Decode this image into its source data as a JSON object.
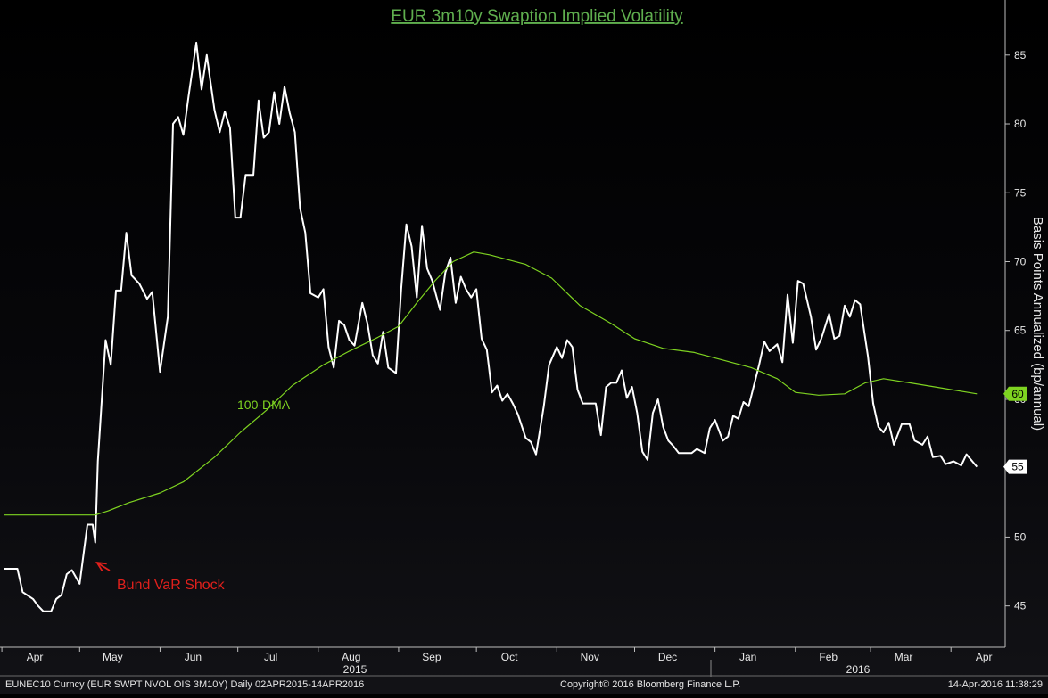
{
  "chart_data": {
    "type": "line",
    "title": "EUR 3m10y Swaption Implied Volatility",
    "ylabel": "Basis Points Annualized (bp/annual)",
    "xlabel": "",
    "ylim": [
      42,
      89
    ],
    "yticks": [
      45,
      50,
      55,
      60,
      65,
      70,
      75,
      80,
      85
    ],
    "x_ticks": [
      "Apr",
      "May",
      "Jun",
      "Jul",
      "Aug",
      "Sep",
      "Oct",
      "Nov",
      "Dec",
      "Jan",
      "Feb",
      "Mar",
      "Apr"
    ],
    "x_years": [
      "2015",
      "2016"
    ],
    "x_range": [
      "2015-04-02",
      "2016-04-14"
    ],
    "grid": false,
    "series": [
      {
        "name": "",
        "color": "#ffffff",
        "last_value_label": "55",
        "points": [
          [
            "2015-04-02",
            47.7
          ],
          [
            "2015-04-07",
            47.7
          ],
          [
            "2015-04-09",
            46.0
          ],
          [
            "2015-04-13",
            45.5
          ],
          [
            "2015-04-15",
            45.0
          ],
          [
            "2015-04-17",
            44.6
          ],
          [
            "2015-04-20",
            44.6
          ],
          [
            "2015-04-22",
            45.5
          ],
          [
            "2015-04-24",
            45.8
          ],
          [
            "2015-04-26",
            47.3
          ],
          [
            "2015-04-28",
            47.6
          ],
          [
            "2015-05-01",
            46.6
          ],
          [
            "2015-05-04",
            50.9
          ],
          [
            "2015-05-06",
            50.9
          ],
          [
            "2015-05-07",
            49.6
          ],
          [
            "2015-05-08",
            55.5
          ],
          [
            "2015-05-11",
            64.3
          ],
          [
            "2015-05-13",
            62.5
          ],
          [
            "2015-05-15",
            67.9
          ],
          [
            "2015-05-17",
            67.9
          ],
          [
            "2015-05-19",
            72.1
          ],
          [
            "2015-05-21",
            69.0
          ],
          [
            "2015-05-24",
            68.4
          ],
          [
            "2015-05-27",
            67.3
          ],
          [
            "2015-05-29",
            67.8
          ],
          [
            "2015-06-01",
            62.0
          ],
          [
            "2015-06-04",
            66.0
          ],
          [
            "2015-06-06",
            80.0
          ],
          [
            "2015-06-08",
            80.5
          ],
          [
            "2015-06-10",
            79.2
          ],
          [
            "2015-06-12",
            82.0
          ],
          [
            "2015-06-15",
            85.9
          ],
          [
            "2015-06-17",
            82.5
          ],
          [
            "2015-06-19",
            85.0
          ],
          [
            "2015-06-22",
            81.0
          ],
          [
            "2015-06-24",
            79.4
          ],
          [
            "2015-06-26",
            80.9
          ],
          [
            "2015-06-28",
            79.7
          ],
          [
            "2015-06-30",
            73.2
          ],
          [
            "2015-07-02",
            73.2
          ],
          [
            "2015-07-04",
            76.3
          ],
          [
            "2015-07-07",
            76.3
          ],
          [
            "2015-07-09",
            81.7
          ],
          [
            "2015-07-11",
            79.0
          ],
          [
            "2015-07-13",
            79.4
          ],
          [
            "2015-07-15",
            82.3
          ],
          [
            "2015-07-17",
            80.0
          ],
          [
            "2015-07-19",
            82.7
          ],
          [
            "2015-07-21",
            80.8
          ],
          [
            "2015-07-23",
            79.4
          ],
          [
            "2015-07-25",
            73.9
          ],
          [
            "2015-07-27",
            72.1
          ],
          [
            "2015-07-29",
            67.7
          ],
          [
            "2015-08-01",
            67.4
          ],
          [
            "2015-08-03",
            68.0
          ],
          [
            "2015-08-05",
            63.8
          ],
          [
            "2015-08-07",
            62.3
          ],
          [
            "2015-08-09",
            65.7
          ],
          [
            "2015-08-11",
            65.4
          ],
          [
            "2015-08-13",
            64.3
          ],
          [
            "2015-08-15",
            63.9
          ],
          [
            "2015-08-18",
            67.0
          ],
          [
            "2015-08-20",
            65.5
          ],
          [
            "2015-08-22",
            63.2
          ],
          [
            "2015-08-24",
            62.6
          ],
          [
            "2015-08-26",
            64.9
          ],
          [
            "2015-08-28",
            62.3
          ],
          [
            "2015-08-31",
            61.9
          ],
          [
            "2015-09-02",
            68.0
          ],
          [
            "2015-09-04",
            72.7
          ],
          [
            "2015-09-06",
            71.1
          ],
          [
            "2015-09-08",
            67.4
          ],
          [
            "2015-09-10",
            72.6
          ],
          [
            "2015-09-12",
            69.5
          ],
          [
            "2015-09-14",
            68.6
          ],
          [
            "2015-09-17",
            66.5
          ],
          [
            "2015-09-19",
            69.2
          ],
          [
            "2015-09-21",
            70.3
          ],
          [
            "2015-09-23",
            67.0
          ],
          [
            "2015-09-25",
            68.9
          ],
          [
            "2015-09-27",
            68.0
          ],
          [
            "2015-09-29",
            67.4
          ],
          [
            "2015-10-01",
            68.0
          ],
          [
            "2015-10-03",
            64.4
          ],
          [
            "2015-10-05",
            63.6
          ],
          [
            "2015-10-07",
            60.5
          ],
          [
            "2015-10-09",
            61.0
          ],
          [
            "2015-10-11",
            59.9
          ],
          [
            "2015-10-13",
            60.4
          ],
          [
            "2015-10-15",
            59.7
          ],
          [
            "2015-10-17",
            58.9
          ],
          [
            "2015-10-20",
            57.2
          ],
          [
            "2015-10-22",
            56.9
          ],
          [
            "2015-10-24",
            56.0
          ],
          [
            "2015-10-27",
            59.5
          ],
          [
            "2015-10-29",
            62.5
          ],
          [
            "2015-11-01",
            63.8
          ],
          [
            "2015-11-03",
            63.0
          ],
          [
            "2015-11-05",
            64.3
          ],
          [
            "2015-11-07",
            63.8
          ],
          [
            "2015-11-09",
            60.7
          ],
          [
            "2015-11-11",
            59.7
          ],
          [
            "2015-11-13",
            59.7
          ],
          [
            "2015-11-16",
            59.7
          ],
          [
            "2015-11-18",
            57.4
          ],
          [
            "2015-11-20",
            60.9
          ],
          [
            "2015-11-22",
            61.2
          ],
          [
            "2015-11-24",
            61.2
          ],
          [
            "2015-11-26",
            62.1
          ],
          [
            "2015-11-28",
            60.1
          ],
          [
            "2015-11-30",
            60.9
          ],
          [
            "2015-12-02",
            59.0
          ],
          [
            "2015-12-04",
            56.2
          ],
          [
            "2015-12-06",
            55.6
          ],
          [
            "2015-12-08",
            59.0
          ],
          [
            "2015-12-10",
            60.0
          ],
          [
            "2015-12-12",
            58.0
          ],
          [
            "2015-12-14",
            57.0
          ],
          [
            "2015-12-16",
            56.6
          ],
          [
            "2015-12-18",
            56.1
          ],
          [
            "2015-12-21",
            56.1
          ],
          [
            "2015-12-23",
            56.1
          ],
          [
            "2015-12-25",
            56.4
          ],
          [
            "2015-12-28",
            56.1
          ],
          [
            "2015-12-30",
            57.9
          ],
          [
            "2016-01-01",
            58.5
          ],
          [
            "2016-01-04",
            57.0
          ],
          [
            "2016-01-06",
            57.3
          ],
          [
            "2016-01-08",
            58.8
          ],
          [
            "2016-01-10",
            58.6
          ],
          [
            "2016-01-12",
            59.8
          ],
          [
            "2016-01-14",
            59.5
          ],
          [
            "2016-01-18",
            62.5
          ],
          [
            "2016-01-20",
            64.2
          ],
          [
            "2016-01-22",
            63.5
          ],
          [
            "2016-01-25",
            64.0
          ],
          [
            "2016-01-27",
            62.7
          ],
          [
            "2016-01-29",
            67.6
          ],
          [
            "2016-01-31",
            64.1
          ],
          [
            "2016-02-02",
            68.6
          ],
          [
            "2016-02-04",
            68.4
          ],
          [
            "2016-02-07",
            66.0
          ],
          [
            "2016-02-09",
            63.6
          ],
          [
            "2016-02-11",
            64.4
          ],
          [
            "2016-02-14",
            66.2
          ],
          [
            "2016-02-16",
            64.4
          ],
          [
            "2016-02-18",
            64.6
          ],
          [
            "2016-02-20",
            66.8
          ],
          [
            "2016-02-22",
            66.0
          ],
          [
            "2016-02-24",
            67.2
          ],
          [
            "2016-02-26",
            66.9
          ],
          [
            "2016-02-29",
            63.1
          ],
          [
            "2016-03-02",
            59.7
          ],
          [
            "2016-03-04",
            58.0
          ],
          [
            "2016-03-06",
            57.6
          ],
          [
            "2016-03-08",
            58.3
          ],
          [
            "2016-03-10",
            56.7
          ],
          [
            "2016-03-13",
            58.2
          ],
          [
            "2016-03-16",
            58.2
          ],
          [
            "2016-03-18",
            57.0
          ],
          [
            "2016-03-21",
            56.7
          ],
          [
            "2016-03-23",
            57.3
          ],
          [
            "2016-03-25",
            55.8
          ],
          [
            "2016-03-28",
            55.9
          ],
          [
            "2016-03-30",
            55.3
          ],
          [
            "2016-04-02",
            55.5
          ],
          [
            "2016-04-05",
            55.2
          ],
          [
            "2016-04-07",
            56.0
          ],
          [
            "2016-04-11",
            55.1
          ]
        ]
      },
      {
        "name": "100-DMA",
        "color": "#7ed321",
        "last_value_label": "60",
        "points": [
          [
            "2015-04-02",
            51.6
          ],
          [
            "2015-05-07",
            51.6
          ],
          [
            "2015-05-12",
            51.9
          ],
          [
            "2015-05-20",
            52.5
          ],
          [
            "2015-06-01",
            53.2
          ],
          [
            "2015-06-10",
            54.0
          ],
          [
            "2015-06-22",
            55.8
          ],
          [
            "2015-07-02",
            57.6
          ],
          [
            "2015-07-12",
            59.2
          ],
          [
            "2015-07-22",
            61.0
          ],
          [
            "2015-08-03",
            62.5
          ],
          [
            "2015-08-13",
            63.5
          ],
          [
            "2015-08-24",
            64.5
          ],
          [
            "2015-09-01",
            65.3
          ],
          [
            "2015-09-08",
            67.0
          ],
          [
            "2015-09-15",
            68.6
          ],
          [
            "2015-09-22",
            70.0
          ],
          [
            "2015-09-30",
            70.7
          ],
          [
            "2015-10-06",
            70.5
          ],
          [
            "2015-10-20",
            69.8
          ],
          [
            "2015-10-30",
            68.8
          ],
          [
            "2015-11-10",
            66.8
          ],
          [
            "2015-11-22",
            65.5
          ],
          [
            "2015-12-01",
            64.4
          ],
          [
            "2015-12-12",
            63.7
          ],
          [
            "2015-12-24",
            63.4
          ],
          [
            "2016-01-05",
            62.8
          ],
          [
            "2016-01-15",
            62.3
          ],
          [
            "2016-01-25",
            61.5
          ],
          [
            "2016-02-01",
            60.5
          ],
          [
            "2016-02-10",
            60.3
          ],
          [
            "2016-02-20",
            60.4
          ],
          [
            "2016-02-28",
            61.2
          ],
          [
            "2016-03-06",
            61.5
          ],
          [
            "2016-03-16",
            61.2
          ],
          [
            "2016-03-26",
            60.9
          ],
          [
            "2016-04-11",
            60.4
          ]
        ]
      }
    ],
    "annotations": [
      {
        "text": "100-DMA",
        "color": "#7ed321"
      },
      {
        "text": "Bund VaR Shock",
        "color": "#e0201c",
        "arrow_to": [
          "2015-05-07",
          48.4
        ]
      }
    ]
  },
  "footer": {
    "ticker": "EUNEC10 Curncy (EUR SWPT NVOL OIS 3M10Y)  Daily 02APR2015-14APR2016",
    "copyright": "Copyright© 2016 Bloomberg Finance L.P.",
    "timestamp": "14-Apr-2016 11:38:29"
  }
}
